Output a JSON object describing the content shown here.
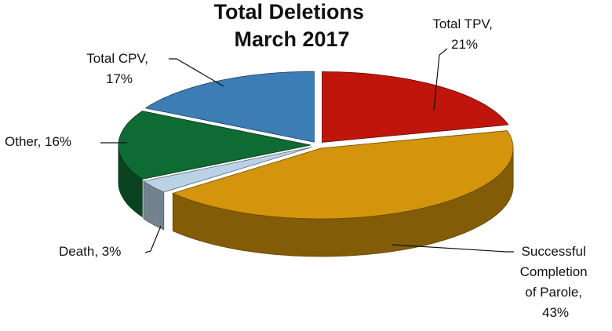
{
  "chart_data": {
    "type": "pie",
    "title": "Total Deletions March 2017",
    "labels": [
      "Total TPV, 21%",
      "Successful Completion of Parole, 43%",
      "Death, 3%",
      "Other, 16%",
      "Total CPV, 17%"
    ],
    "values": [
      21,
      43,
      3,
      16,
      17
    ],
    "colors": [
      "#c0150d",
      "#d4950c",
      "#b9d2e6",
      "#0f6b34",
      "#3b7db4"
    ]
  }
}
